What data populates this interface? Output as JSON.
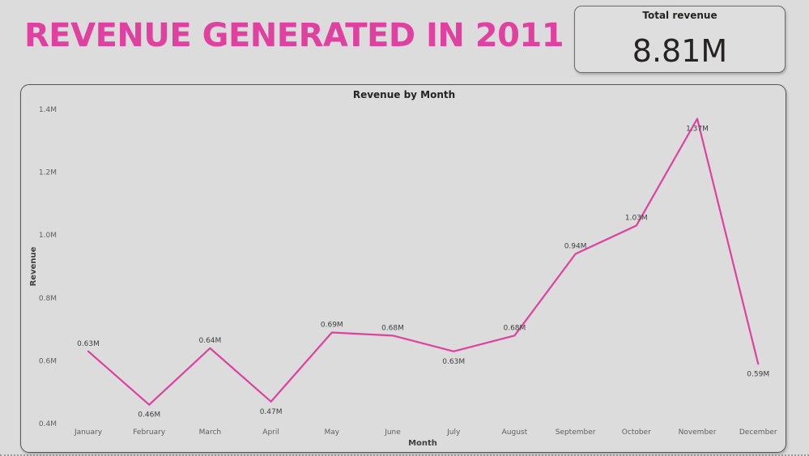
{
  "header": {
    "title": "REVENUE GENERATED IN 2011"
  },
  "kpi": {
    "label": "Total revenue",
    "value": "8.81M"
  },
  "colors": {
    "accent": "#e040a0",
    "background": "#dcdcdc",
    "text": "#252423"
  },
  "chart_data": {
    "type": "line",
    "title": "Revenue by Month",
    "xlabel": "Month",
    "ylabel": "Revenue",
    "categories": [
      "January",
      "February",
      "March",
      "April",
      "May",
      "June",
      "July",
      "August",
      "September",
      "October",
      "November",
      "December"
    ],
    "series": [
      {
        "name": "Revenue",
        "values": [
          0.63,
          0.46,
          0.64,
          0.47,
          0.69,
          0.68,
          0.63,
          0.68,
          0.94,
          1.03,
          1.37,
          0.59
        ],
        "labels": [
          "0.63M",
          "0.46M",
          "0.64M",
          "0.47M",
          "0.69M",
          "0.68M",
          "0.63M",
          "0.68M",
          "0.94M",
          "1.03M",
          "1.37M",
          "0.59M"
        ],
        "label_positions": [
          "above",
          "below",
          "above",
          "below",
          "above",
          "above",
          "below",
          "above",
          "above",
          "above",
          "below",
          "below"
        ]
      }
    ],
    "ylim": [
      0.4,
      1.4
    ],
    "yticks": [
      0.4,
      0.6,
      0.8,
      1.0,
      1.2,
      1.4
    ],
    "ytick_labels": [
      "0.4M",
      "0.6M",
      "0.8M",
      "1.0M",
      "1.2M",
      "1.4M"
    ],
    "grid": false,
    "legend": "none"
  }
}
